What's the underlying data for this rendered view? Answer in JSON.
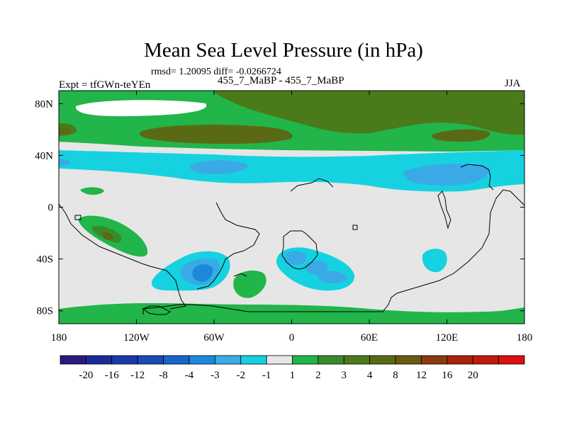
{
  "title": "Mean Sea Level Pressure (in hPa)",
  "stats_text": "rmsd= 1.20095 diff= -0.0266724",
  "left_label": "Expt = tfGWn-teYEn",
  "center_label": "455_7_MaBP - 455_7_MaBP",
  "right_label": "JJA",
  "map": {
    "projection": "cylindrical equidistant",
    "lon_range": [
      -180,
      180
    ],
    "lat_range": [
      -90,
      90
    ],
    "x_ticks": [
      {
        "value": -180,
        "label": "180"
      },
      {
        "value": -120,
        "label": "120W"
      },
      {
        "value": -60,
        "label": "60W"
      },
      {
        "value": 0,
        "label": "0"
      },
      {
        "value": 60,
        "label": "60E"
      },
      {
        "value": 120,
        "label": "120E"
      },
      {
        "value": 180,
        "label": "180"
      }
    ],
    "y_ticks": [
      {
        "value": 80,
        "label": "80N"
      },
      {
        "value": 40,
        "label": "40N"
      },
      {
        "value": 0,
        "label": "0"
      },
      {
        "value": -40,
        "label": "40S"
      },
      {
        "value": -80,
        "label": "80S"
      }
    ]
  },
  "colorbar": {
    "colors": [
      "#2a1a7a",
      "#1a2a9a",
      "#1a3aaa",
      "#1a4ab6",
      "#1a64c8",
      "#1e88d8",
      "#3aaae6",
      "#16d2e0",
      "#e6e6e6",
      "#21b54a",
      "#3a8a2a",
      "#4a7a1a",
      "#5a6a14",
      "#6a5a14",
      "#8a3a10",
      "#a8220e",
      "#c01a0e",
      "#dd1010"
    ],
    "labels": [
      "-20",
      "-16",
      "-12",
      "-8",
      "-4",
      "-3",
      "-2",
      "-1",
      "1",
      "2",
      "3",
      "4",
      "8",
      "12",
      "16",
      "20"
    ]
  }
}
